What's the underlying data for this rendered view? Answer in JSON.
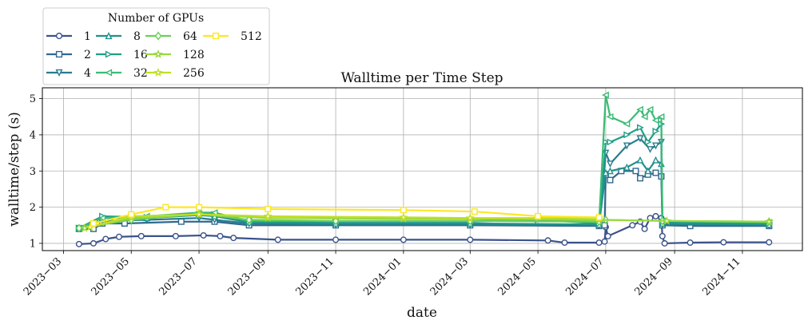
{
  "chart_data": {
    "type": "line",
    "title": "Walltime per Time Step",
    "xlabel": "date",
    "ylabel": "walltime/step (s)",
    "x_type": "date",
    "xlim": [
      "2023-02-10",
      "2024-12-25"
    ],
    "ylim": [
      0.8,
      5.3
    ],
    "grid": true,
    "x_ticks": [
      "2023-03-01",
      "2023-05-01",
      "2023-07-01",
      "2023-09-01",
      "2023-11-01",
      "2024-01-01",
      "2024-03-01",
      "2024-05-01",
      "2024-07-01",
      "2024-09-01",
      "2024-11-01"
    ],
    "x_tick_labels": [
      "2023−03",
      "2023−05",
      "2023−07",
      "2023−09",
      "2023−11",
      "2024−01",
      "2024−03",
      "2024−05",
      "2024−07",
      "2024−09",
      "2024−11"
    ],
    "y_ticks": [
      1,
      2,
      3,
      4,
      5
    ],
    "legend": {
      "title": "Number of GPUs",
      "position": "upper-left-outside"
    },
    "series": [
      {
        "name": "1",
        "color": "#3b528b",
        "marker": "circle",
        "points": [
          [
            "2023-03-15",
            0.98
          ],
          [
            "2023-03-28",
            1.0
          ],
          [
            "2023-04-08",
            1.12
          ],
          [
            "2023-04-20",
            1.18
          ],
          [
            "2023-05-10",
            1.2
          ],
          [
            "2023-06-10",
            1.2
          ],
          [
            "2023-07-05",
            1.22
          ],
          [
            "2023-07-20",
            1.2
          ],
          [
            "2023-08-01",
            1.15
          ],
          [
            "2023-09-10",
            1.1
          ],
          [
            "2023-11-01",
            1.1
          ],
          [
            "2024-01-01",
            1.1
          ],
          [
            "2024-03-01",
            1.1
          ],
          [
            "2024-05-10",
            1.08
          ],
          [
            "2024-05-25",
            1.02
          ],
          [
            "2024-06-25",
            1.02
          ],
          [
            "2024-06-30",
            1.05
          ],
          [
            "2024-07-01",
            1.45
          ],
          [
            "2024-07-03",
            1.2
          ],
          [
            "2024-07-25",
            1.5
          ],
          [
            "2024-08-01",
            1.6
          ],
          [
            "2024-08-05",
            1.4
          ],
          [
            "2024-08-10",
            1.7
          ],
          [
            "2024-08-15",
            1.75
          ],
          [
            "2024-08-20",
            1.7
          ],
          [
            "2024-08-21",
            1.2
          ],
          [
            "2024-08-23",
            1.0
          ],
          [
            "2024-09-15",
            1.02
          ],
          [
            "2024-10-15",
            1.03
          ],
          [
            "2024-11-25",
            1.03
          ]
        ]
      },
      {
        "name": "2",
        "color": "#31688e",
        "marker": "square",
        "points": [
          [
            "2023-03-15",
            1.4
          ],
          [
            "2023-03-28",
            1.4
          ],
          [
            "2023-04-05",
            1.55
          ],
          [
            "2023-04-25",
            1.55
          ],
          [
            "2023-06-15",
            1.6
          ],
          [
            "2023-07-15",
            1.6
          ],
          [
            "2023-08-15",
            1.5
          ],
          [
            "2023-11-01",
            1.5
          ],
          [
            "2024-03-01",
            1.5
          ],
          [
            "2024-06-25",
            1.48
          ],
          [
            "2024-06-30",
            1.5
          ],
          [
            "2024-07-01",
            2.9
          ],
          [
            "2024-07-05",
            2.75
          ],
          [
            "2024-07-15",
            3.0
          ],
          [
            "2024-07-28",
            3.0
          ],
          [
            "2024-08-01",
            2.8
          ],
          [
            "2024-08-08",
            2.9
          ],
          [
            "2024-08-15",
            2.95
          ],
          [
            "2024-08-20",
            2.85
          ],
          [
            "2024-08-21",
            1.5
          ],
          [
            "2024-09-15",
            1.48
          ],
          [
            "2024-11-25",
            1.48
          ]
        ]
      },
      {
        "name": "4",
        "color": "#287c8e",
        "marker": "triangle-down",
        "points": [
          [
            "2023-03-15",
            1.42
          ],
          [
            "2023-04-05",
            1.62
          ],
          [
            "2023-05-15",
            1.65
          ],
          [
            "2023-07-01",
            1.7
          ],
          [
            "2023-07-15",
            1.65
          ],
          [
            "2023-08-15",
            1.55
          ],
          [
            "2023-11-01",
            1.52
          ],
          [
            "2024-03-01",
            1.52
          ],
          [
            "2024-06-25",
            1.5
          ],
          [
            "2024-07-01",
            3.5
          ],
          [
            "2024-07-05",
            3.2
          ],
          [
            "2024-07-20",
            3.7
          ],
          [
            "2024-08-01",
            3.9
          ],
          [
            "2024-08-10",
            3.6
          ],
          [
            "2024-08-15",
            3.7
          ],
          [
            "2024-08-20",
            3.8
          ],
          [
            "2024-08-21",
            1.52
          ],
          [
            "2024-11-25",
            1.5
          ]
        ]
      },
      {
        "name": "8",
        "color": "#21918c",
        "marker": "triangle-up",
        "points": [
          [
            "2023-03-15",
            1.42
          ],
          [
            "2023-04-05",
            1.7
          ],
          [
            "2023-05-15",
            1.7
          ],
          [
            "2023-07-01",
            1.78
          ],
          [
            "2023-07-15",
            1.75
          ],
          [
            "2023-08-15",
            1.58
          ],
          [
            "2023-11-01",
            1.55
          ],
          [
            "2024-03-01",
            1.55
          ],
          [
            "2024-06-25",
            1.52
          ],
          [
            "2024-07-01",
            2.95
          ],
          [
            "2024-07-05",
            3.0
          ],
          [
            "2024-07-20",
            3.1
          ],
          [
            "2024-08-01",
            3.3
          ],
          [
            "2024-08-08",
            3.0
          ],
          [
            "2024-08-15",
            3.3
          ],
          [
            "2024-08-20",
            3.2
          ],
          [
            "2024-08-21",
            1.55
          ],
          [
            "2024-11-25",
            1.52
          ]
        ]
      },
      {
        "name": "16",
        "color": "#1fa088",
        "marker": "triangle-right",
        "points": [
          [
            "2023-03-15",
            1.42
          ],
          [
            "2023-04-05",
            1.75
          ],
          [
            "2023-05-15",
            1.72
          ],
          [
            "2023-07-01",
            1.8
          ],
          [
            "2023-07-15",
            1.8
          ],
          [
            "2023-08-15",
            1.6
          ],
          [
            "2023-11-01",
            1.6
          ],
          [
            "2024-03-01",
            1.6
          ],
          [
            "2024-05-01",
            1.65
          ],
          [
            "2024-06-25",
            1.55
          ],
          [
            "2024-07-01",
            3.8
          ],
          [
            "2024-07-05",
            3.8
          ],
          [
            "2024-07-20",
            4.0
          ],
          [
            "2024-08-01",
            4.2
          ],
          [
            "2024-08-08",
            3.8
          ],
          [
            "2024-08-15",
            4.1
          ],
          [
            "2024-08-20",
            4.3
          ],
          [
            "2024-08-21",
            1.6
          ],
          [
            "2024-11-25",
            1.55
          ]
        ]
      },
      {
        "name": "32",
        "color": "#3bbb75",
        "marker": "triangle-left",
        "points": [
          [
            "2023-03-15",
            1.42
          ],
          [
            "2023-04-05",
            1.7
          ],
          [
            "2023-05-15",
            1.75
          ],
          [
            "2023-07-01",
            1.85
          ],
          [
            "2023-07-15",
            1.85
          ],
          [
            "2023-08-15",
            1.62
          ],
          [
            "2023-11-01",
            1.62
          ],
          [
            "2024-03-01",
            1.62
          ],
          [
            "2024-05-01",
            1.68
          ],
          [
            "2024-06-25",
            1.58
          ],
          [
            "2024-07-01",
            5.1
          ],
          [
            "2024-07-05",
            4.5
          ],
          [
            "2024-07-20",
            4.3
          ],
          [
            "2024-08-01",
            4.7
          ],
          [
            "2024-08-05",
            4.5
          ],
          [
            "2024-08-10",
            4.7
          ],
          [
            "2024-08-15",
            4.4
          ],
          [
            "2024-08-20",
            4.5
          ],
          [
            "2024-08-21",
            1.62
          ],
          [
            "2024-11-25",
            1.58
          ]
        ]
      },
      {
        "name": "64",
        "color": "#6ece58",
        "marker": "diamond",
        "points": [
          [
            "2023-03-15",
            1.42
          ],
          [
            "2023-05-01",
            1.65
          ],
          [
            "2023-07-01",
            1.82
          ],
          [
            "2023-08-15",
            1.65
          ],
          [
            "2023-11-01",
            1.62
          ],
          [
            "2024-03-01",
            1.62
          ],
          [
            "2024-06-25",
            1.6
          ],
          [
            "2024-07-01",
            1.65
          ],
          [
            "2024-08-21",
            1.62
          ],
          [
            "2024-11-25",
            1.6
          ]
        ]
      },
      {
        "name": "128",
        "color": "#9ad83d",
        "marker": "star",
        "points": [
          [
            "2023-03-20",
            1.42
          ],
          [
            "2023-05-01",
            1.7
          ],
          [
            "2023-07-01",
            1.8
          ],
          [
            "2023-09-01",
            1.7
          ],
          [
            "2024-01-01",
            1.68
          ],
          [
            "2024-03-01",
            1.68
          ],
          [
            "2024-06-25",
            1.65
          ],
          [
            "2024-08-25",
            1.62
          ],
          [
            "2024-11-25",
            1.6
          ]
        ]
      },
      {
        "name": "256",
        "color": "#c2df23",
        "marker": "star",
        "points": [
          [
            "2023-03-25",
            1.45
          ],
          [
            "2023-05-01",
            1.75
          ],
          [
            "2023-07-01",
            1.8
          ],
          [
            "2023-09-01",
            1.75
          ],
          [
            "2024-01-01",
            1.72
          ],
          [
            "2024-03-01",
            1.7
          ],
          [
            "2024-06-25",
            1.7
          ]
        ]
      },
      {
        "name": "512",
        "color": "#fde725",
        "marker": "square",
        "points": [
          [
            "2023-03-28",
            1.55
          ],
          [
            "2023-05-01",
            1.8
          ],
          [
            "2023-06-01",
            2.0
          ],
          [
            "2023-07-01",
            2.0
          ],
          [
            "2023-09-01",
            1.95
          ],
          [
            "2024-01-01",
            1.92
          ],
          [
            "2024-03-05",
            1.88
          ],
          [
            "2024-05-01",
            1.75
          ],
          [
            "2024-06-25",
            1.72
          ]
        ]
      }
    ]
  }
}
